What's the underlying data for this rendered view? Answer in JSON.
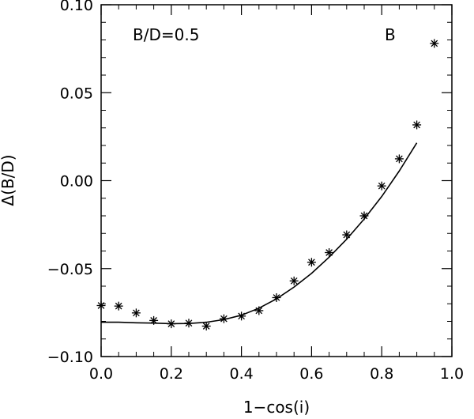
{
  "chart_data": {
    "type": "scatter",
    "xlabel": "1−cos(i)",
    "ylabel": "Δ(B/D)",
    "xlim": [
      0.0,
      1.0
    ],
    "ylim": [
      -0.1,
      0.1
    ],
    "x_ticks": [
      "0.0",
      "0.2",
      "0.4",
      "0.6",
      "0.8",
      "1.0"
    ],
    "y_ticks": [
      "−0.10",
      "−0.05",
      "0.00",
      "0.05",
      "0.10"
    ],
    "annotations": [
      "B/D=0.5",
      "B"
    ],
    "grid": false,
    "series": [
      {
        "marker": "asterisk",
        "x": [
          0.0,
          0.05,
          0.1,
          0.15,
          0.2,
          0.25,
          0.3,
          0.35,
          0.4,
          0.45,
          0.5,
          0.55,
          0.6,
          0.65,
          0.7,
          0.75,
          0.8,
          0.85,
          0.9,
          0.95
        ],
        "y": [
          -0.071,
          -0.0713,
          -0.0752,
          -0.0795,
          -0.0814,
          -0.081,
          -0.0827,
          -0.0785,
          -0.077,
          -0.0739,
          -0.0665,
          -0.057,
          -0.0464,
          -0.0409,
          -0.0308,
          -0.02,
          -0.003,
          0.0124,
          0.0317,
          0.078
        ]
      },
      {
        "marker": "line",
        "x": [
          0.0,
          0.05,
          0.1,
          0.15,
          0.2,
          0.25,
          0.3,
          0.35,
          0.4,
          0.45,
          0.5,
          0.55,
          0.6,
          0.65,
          0.7,
          0.75,
          0.8,
          0.85,
          0.9
        ],
        "y": [
          -0.0805,
          -0.0805,
          -0.0808,
          -0.081,
          -0.0813,
          -0.0812,
          -0.0805,
          -0.079,
          -0.0765,
          -0.0725,
          -0.0672,
          -0.0605,
          -0.0527,
          -0.0435,
          -0.0333,
          -0.0218,
          -0.009,
          0.0055,
          0.0215
        ]
      }
    ]
  }
}
